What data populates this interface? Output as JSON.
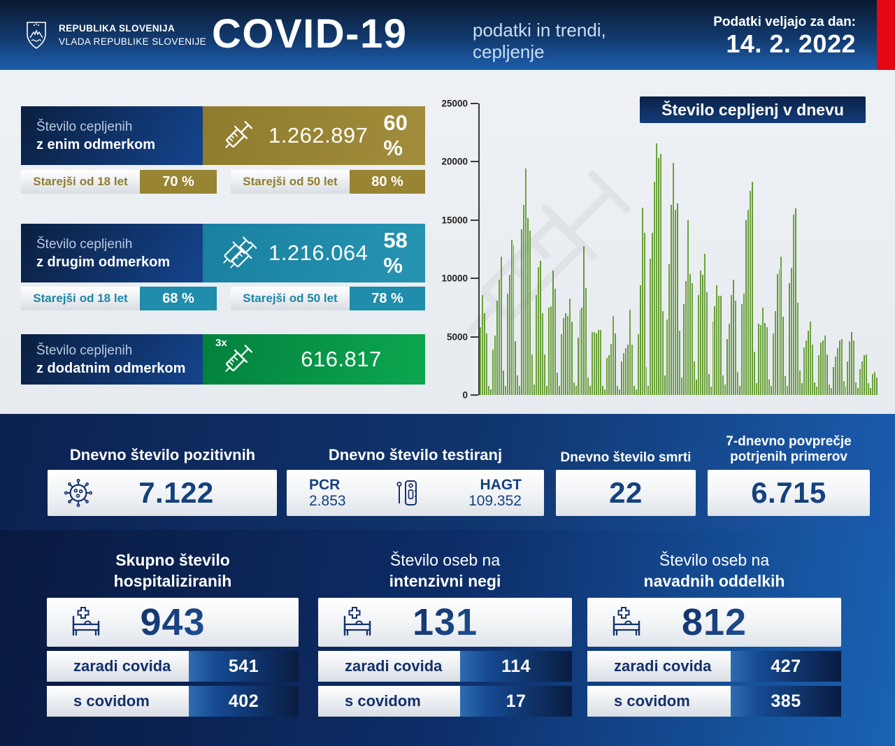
{
  "header": {
    "org_line1": "REPUBLIKA SLOVENIJA",
    "org_line2": "VLADA REPUBLIKE SLOVENIJE",
    "title": "COVID-19",
    "subtitle_line1": "podatki in trendi,",
    "subtitle_line2": "cepljenje",
    "date_label": "Podatki veljajo za dan:",
    "date_value": "14. 2. 2022"
  },
  "colors": {
    "accent_red": "#e30613",
    "gold": "#998434",
    "teal": "#1f8dab",
    "green": "#0a9a49",
    "navy": "#14316b",
    "bar_green": "#6da23c"
  },
  "icons": {
    "logo": "slovenia-coat-of-arms",
    "block1": "syringe-icon",
    "block2": "double-syringe-icon",
    "block3": "syringe-3x-icon",
    "positives": "virus-icon",
    "tests": "antigen-test-icon",
    "hospital": "hospital-bed-icon",
    "chart_watermark": "syringe-watermark"
  },
  "vaccination": {
    "blocks": [
      {
        "label_line1": "Število cepljenih",
        "label_line2": "z enim odmerkom",
        "value": "1.262.897",
        "percent": "60 %",
        "accent_color": "#998434",
        "subs": [
          {
            "label_pre": "Starejši",
            "label_bold": "od 18 let",
            "value": "70 %"
          },
          {
            "label_pre": "Starejši",
            "label_bold": "od 50 let",
            "value": "80 %"
          }
        ]
      },
      {
        "label_line1": "Število cepljenih",
        "label_line2": "z drugim odmerkom",
        "value": "1.216.064",
        "percent": "58 %",
        "accent_color": "#1f8dab",
        "subs": [
          {
            "label_pre": "Starejši",
            "label_bold": "od 18 let",
            "value": "68 %"
          },
          {
            "label_pre": "Starejši",
            "label_bold": "od 50 let",
            "value": "78 %"
          }
        ]
      },
      {
        "label_line1": "Število cepljenih",
        "label_line2": "z dodatnim odmerkom",
        "value": "616.817",
        "percent": "",
        "badge": "3x",
        "accent_color": "#0a9a49",
        "subs": []
      }
    ]
  },
  "chart_data": {
    "type": "bar",
    "title": "Število cepljenj v dnevu",
    "xlabel": "",
    "ylabel": "",
    "ylim": [
      0,
      25000
    ],
    "yticks": [
      0,
      5000,
      10000,
      15000,
      20000,
      25000
    ],
    "grid": false,
    "legend": "none",
    "values": [
      5800,
      8600,
      7000,
      5300,
      800,
      500,
      3900,
      5100,
      8100,
      9900,
      11900,
      2100,
      800,
      8700,
      10300,
      13300,
      12900,
      4600,
      1700,
      800,
      14200,
      16300,
      19400,
      15200,
      14100,
      3500,
      900,
      8600,
      11000,
      11500,
      7000,
      3500,
      800,
      7500,
      7600,
      10700,
      9100,
      1900,
      800,
      5200,
      6600,
      7000,
      6800,
      8300,
      6300,
      1100,
      800,
      4900,
      7300,
      7500,
      12800,
      9200,
      1500,
      800,
      5400,
      5400,
      5300,
      5600,
      5600,
      800,
      500,
      3200,
      3400,
      4400,
      6800,
      5300,
      800,
      500,
      2900,
      3600,
      4000,
      4300,
      7300,
      4300,
      800,
      500,
      5200,
      9400,
      16100,
      13900,
      2400,
      800,
      11700,
      13900,
      18300,
      21600,
      20300,
      20700,
      7200,
      1700,
      6500,
      11200,
      16300,
      19900,
      15900,
      16400,
      5500,
      1500,
      7800,
      9800,
      15000,
      10400,
      9600,
      2900,
      1300,
      8600,
      10700,
      10300,
      12100,
      8800,
      1800,
      700,
      6300,
      7600,
      9400,
      8500,
      8500,
      1700,
      900,
      4800,
      6100,
      8600,
      9900,
      8100,
      2000,
      800,
      7800,
      8700,
      15000,
      15900,
      17500,
      18300,
      3700,
      1000,
      6100,
      6000,
      7500,
      6200,
      5800,
      1300,
      800,
      5300,
      7200,
      10400,
      10800,
      11900,
      6700,
      1600,
      800,
      9600,
      10900,
      15500,
      16000,
      7900,
      2100,
      1000,
      4100,
      4700,
      5500,
      6300,
      4300,
      1100,
      700,
      3400,
      4500,
      4700,
      5100,
      3500,
      900,
      600,
      2400,
      3300,
      4000,
      4700,
      4800,
      1200,
      700,
      2900,
      4600,
      5400,
      4700,
      1100,
      600,
      2200,
      2900,
      3400,
      3500,
      1000,
      600,
      1800,
      2000,
      1500
    ]
  },
  "daily_stats": {
    "positives": {
      "title": "Dnevno število pozitivnih",
      "value": "7.122"
    },
    "tests": {
      "title": "Dnevno število testiranj",
      "pcr_label": "PCR",
      "pcr_value": "2.853",
      "hagt_label": "HAGT",
      "hagt_value": "109.352"
    },
    "deaths": {
      "title": "Dnevno število smrti",
      "value": "22"
    },
    "avg7": {
      "title_line1": "7-dnevno povprečje",
      "title_line2": "potrjenih primerov",
      "value": "6.715"
    }
  },
  "hospital": {
    "cards": [
      {
        "title_line1": "Skupno število",
        "title_line2": "hospitaliziranih",
        "total": "943",
        "rows": [
          {
            "label": "zaradi covida",
            "value": "541"
          },
          {
            "label": "s covidom",
            "value": "402"
          }
        ]
      },
      {
        "title_line1": "Število oseb na",
        "title_line2": "intenzivni negi",
        "total": "131",
        "rows": [
          {
            "label": "zaradi covida",
            "value": "114"
          },
          {
            "label": "s covidom",
            "value": "17"
          }
        ]
      },
      {
        "title_line1": "Število oseb na",
        "title_line2": "navadnih oddelkih",
        "total": "812",
        "rows": [
          {
            "label": "zaradi covida",
            "value": "427"
          },
          {
            "label": "s covidom",
            "value": "385"
          }
        ]
      }
    ]
  }
}
